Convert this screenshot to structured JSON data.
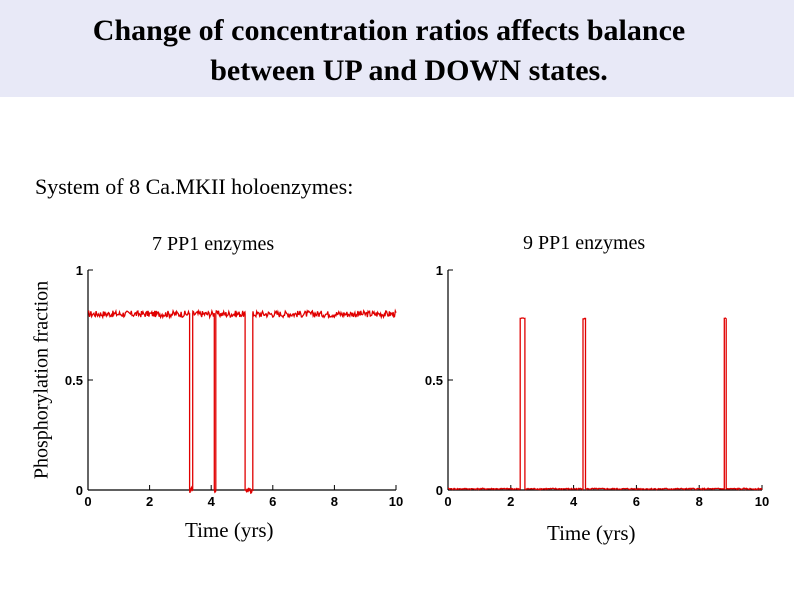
{
  "title": {
    "line1": "Change of concentration ratios affects balance",
    "line2": "between UP and DOWN states."
  },
  "subtitle": "System of 8 Ca.MKII holoenzymes:",
  "y_axis_label": "Phosphorylation fraction",
  "colors": {
    "title_band": "#e8e9f7",
    "trace": "#e00000",
    "axes": "#000000"
  },
  "chart_data": [
    {
      "type": "line",
      "title": "7 PP1 enzymes",
      "xlabel": "Time (yrs)",
      "ylabel": "Phosphorylation fraction",
      "xlim": [
        0,
        10
      ],
      "ylim": [
        0,
        1
      ],
      "xticks": [
        "0",
        "2",
        "4",
        "6",
        "8",
        "10"
      ],
      "yticks": [
        "0",
        "0.5",
        "1"
      ],
      "series": [
        {
          "name": "7 PP1 enzymes",
          "baseline": 0.8,
          "noise": 0.015,
          "events": [
            {
              "start": 3.3,
              "end": 3.4,
              "level": 0.0
            },
            {
              "start": 4.1,
              "end": 4.15,
              "level": 0.0
            },
            {
              "start": 5.1,
              "end": 5.35,
              "level": 0.0
            }
          ]
        }
      ]
    },
    {
      "type": "line",
      "title": "9 PP1 enzymes",
      "xlabel": "Time (yrs)",
      "ylabel": "Phosphorylation fraction",
      "xlim": [
        0,
        10
      ],
      "ylim": [
        0,
        1
      ],
      "xticks": [
        "0",
        "2",
        "4",
        "6",
        "8",
        "10"
      ],
      "yticks": [
        "0",
        "0.5",
        "1"
      ],
      "series": [
        {
          "name": "9 PP1 enzymes",
          "baseline": 0.005,
          "noise": 0.003,
          "events": [
            {
              "start": 2.3,
              "end": 2.45,
              "level": 0.78
            },
            {
              "start": 4.3,
              "end": 4.38,
              "level": 0.78
            },
            {
              "start": 8.8,
              "end": 8.86,
              "level": 0.78
            }
          ]
        }
      ]
    }
  ]
}
